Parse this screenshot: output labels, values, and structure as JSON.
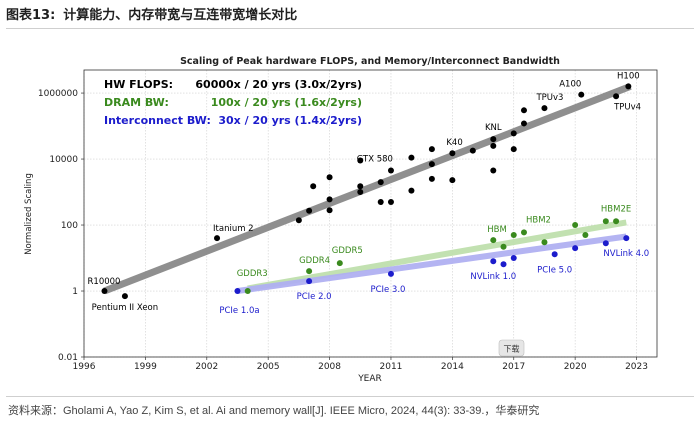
{
  "header": {
    "figure_number": "图表13:",
    "figure_title": "计算能力、内存带宽与互连带宽增长对比"
  },
  "source_note": "资料来源：Gholami A, Yao Z, Kim S, et al. Ai and memory wall[J]. IEEE Micro, 2024, 44(3): 33-39.，华泰研究",
  "overlay_button": "下载",
  "chart_data": {
    "type": "scatter",
    "title": "Scaling of Peak hardware FLOPS, and Memory/Interconnect Bandwidth",
    "xlabel": "YEAR",
    "ylabel": "Normalized Scaling",
    "yscale": "log",
    "xlim": [
      1996,
      2024
    ],
    "ylim": [
      0.01,
      5000000
    ],
    "xticks": [
      1996,
      1999,
      2002,
      2005,
      2008,
      2011,
      2014,
      2017,
      2020,
      2023
    ],
    "yticks": [
      {
        "value": 0.01,
        "label": "0.01"
      },
      {
        "value": 1,
        "label": "1"
      },
      {
        "value": 100,
        "label": "100"
      },
      {
        "value": 10000,
        "label": "10000"
      },
      {
        "value": 1000000,
        "label": "1000000"
      }
    ],
    "grid": true,
    "legend": [
      {
        "name": "HW FLOPS:",
        "text": "60000x / 20 yrs (3.0x/2yrs)",
        "color": "#000000"
      },
      {
        "name": "DRAM BW:",
        "text": "100x / 20 yrs (1.6x/2yrs)",
        "color": "#3a8a1e"
      },
      {
        "name": "Interconnect BW:",
        "text": "30x / 20 yrs (1.4x/2yrs)",
        "color": "#1c1ccc"
      }
    ],
    "series": [
      {
        "name": "HW FLOPS",
        "color": "#000000",
        "trend_color": "#8a8a8a",
        "trend": [
          [
            1997,
            1
          ],
          [
            2022.7,
            1600000
          ]
        ],
        "points": [
          {
            "x": 1997.0,
            "y": 1,
            "label": "R10000",
            "anchor": "end",
            "dx": 16,
            "dy": -7
          },
          {
            "x": 1998.0,
            "y": 0.7,
            "label": "Pentium II Xeon",
            "anchor": "middle",
            "dx": 0,
            "dy": 14
          },
          {
            "x": 2002.5,
            "y": 40,
            "label": "Itanium 2",
            "anchor": "start",
            "dx": -4,
            "dy": -7
          },
          {
            "x": 2006.5,
            "y": 140
          },
          {
            "x": 2007.0,
            "y": 270
          },
          {
            "x": 2007.2,
            "y": 1500
          },
          {
            "x": 2008.0,
            "y": 280
          },
          {
            "x": 2008.0,
            "y": 600
          },
          {
            "x": 2008.0,
            "y": 2800
          },
          {
            "x": 2009.5,
            "y": 9000
          },
          {
            "x": 2009.5,
            "y": 1500
          },
          {
            "x": 2009.5,
            "y": 1000
          },
          {
            "x": 2010.5,
            "y": 500
          },
          {
            "x": 2010.5,
            "y": 2000
          },
          {
            "x": 2011.0,
            "y": 4500,
            "label": "GTX 580",
            "anchor": "end",
            "dx": 2,
            "dy": -9
          },
          {
            "x": 2011.0,
            "y": 500
          },
          {
            "x": 2012.0,
            "y": 11000
          },
          {
            "x": 2012.0,
            "y": 1100
          },
          {
            "x": 2013.0,
            "y": 20000
          },
          {
            "x": 2013.0,
            "y": 7000
          },
          {
            "x": 2013.0,
            "y": 2500
          },
          {
            "x": 2014.0,
            "y": 15000,
            "label": "K40",
            "anchor": "start",
            "dx": -6,
            "dy": -8
          },
          {
            "x": 2014.0,
            "y": 2300
          },
          {
            "x": 2015.0,
            "y": 18000
          },
          {
            "x": 2016.0,
            "y": 40000,
            "label": "KNL",
            "anchor": "middle",
            "dx": 0,
            "dy": -9
          },
          {
            "x": 2016.0,
            "y": 25000
          },
          {
            "x": 2016.0,
            "y": 4500
          },
          {
            "x": 2017.0,
            "y": 60000
          },
          {
            "x": 2017.0,
            "y": 20000
          },
          {
            "x": 2017.5,
            "y": 120000
          },
          {
            "x": 2017.5,
            "y": 300000
          },
          {
            "x": 2018.5,
            "y": 350000,
            "label": "TPUv3",
            "anchor": "start",
            "dx": -8,
            "dy": -8
          },
          {
            "x": 2020.3,
            "y": 900000,
            "label": "A100",
            "anchor": "end",
            "dx": 0,
            "dy": -8
          },
          {
            "x": 2022.0,
            "y": 800000,
            "label": "TPUv4",
            "anchor": "start",
            "dx": -2,
            "dy": 13
          },
          {
            "x": 2022.6,
            "y": 1600000,
            "label": "H100",
            "anchor": "middle",
            "dx": 0,
            "dy": -8
          }
        ]
      },
      {
        "name": "DRAM BW",
        "color": "#3a8a1e",
        "trend_color": "#bfe0ad",
        "trend": [
          [
            2004,
            1.2
          ],
          [
            2022.5,
            120
          ]
        ],
        "points": [
          {
            "x": 2004.0,
            "y": 1,
            "label": "GDDR3",
            "anchor": "end",
            "dx": 20,
            "dy": -15
          },
          {
            "x": 2007.0,
            "y": 4,
            "label": "GDDR4",
            "anchor": "start",
            "dx": -10,
            "dy": -8
          },
          {
            "x": 2008.5,
            "y": 7,
            "label": "GDDR5",
            "anchor": "start",
            "dx": -8,
            "dy": -10
          },
          {
            "x": 2016.0,
            "y": 35,
            "label": "HBM",
            "anchor": "start",
            "dx": -6,
            "dy": -8
          },
          {
            "x": 2016.5,
            "y": 22
          },
          {
            "x": 2017.0,
            "y": 50
          },
          {
            "x": 2017.5,
            "y": 60,
            "label": "HBM2",
            "anchor": "start",
            "dx": 2,
            "dy": -10
          },
          {
            "x": 2018.5,
            "y": 30
          },
          {
            "x": 2020.0,
            "y": 100
          },
          {
            "x": 2020.5,
            "y": 50
          },
          {
            "x": 2021.5,
            "y": 130
          },
          {
            "x": 2022.0,
            "y": 130,
            "label": "HBM2E",
            "anchor": "middle",
            "dx": 0,
            "dy": -10
          }
        ]
      },
      {
        "name": "Interconnect BW",
        "color": "#1c1ccc",
        "trend_color": "#b0b0f2",
        "trend": [
          [
            2003.5,
            1
          ],
          [
            2022.5,
            45
          ]
        ],
        "points": [
          {
            "x": 2003.5,
            "y": 1,
            "label": "PCIe 1.0a",
            "anchor": "middle",
            "dx": 2,
            "dy": 22
          },
          {
            "x": 2007.0,
            "y": 2,
            "label": "PCIe 2.0",
            "anchor": "middle",
            "dx": 5,
            "dy": 18
          },
          {
            "x": 2011.0,
            "y": 3.3,
            "label": "PCIe 3.0",
            "anchor": "middle",
            "dx": -3,
            "dy": 18
          },
          {
            "x": 2016.0,
            "y": 8,
            "label": "NVLink 1.0",
            "anchor": "middle",
            "dx": 0,
            "dy": 18
          },
          {
            "x": 2016.5,
            "y": 6.5
          },
          {
            "x": 2017.0,
            "y": 10
          },
          {
            "x": 2019.0,
            "y": 13,
            "label": "PCIe 5.0",
            "anchor": "middle",
            "dx": 0,
            "dy": 18
          },
          {
            "x": 2020.0,
            "y": 20
          },
          {
            "x": 2021.5,
            "y": 28
          },
          {
            "x": 2022.5,
            "y": 40,
            "label": "NVLink 4.0",
            "anchor": "middle",
            "dx": 0,
            "dy": 18
          }
        ]
      }
    ]
  }
}
